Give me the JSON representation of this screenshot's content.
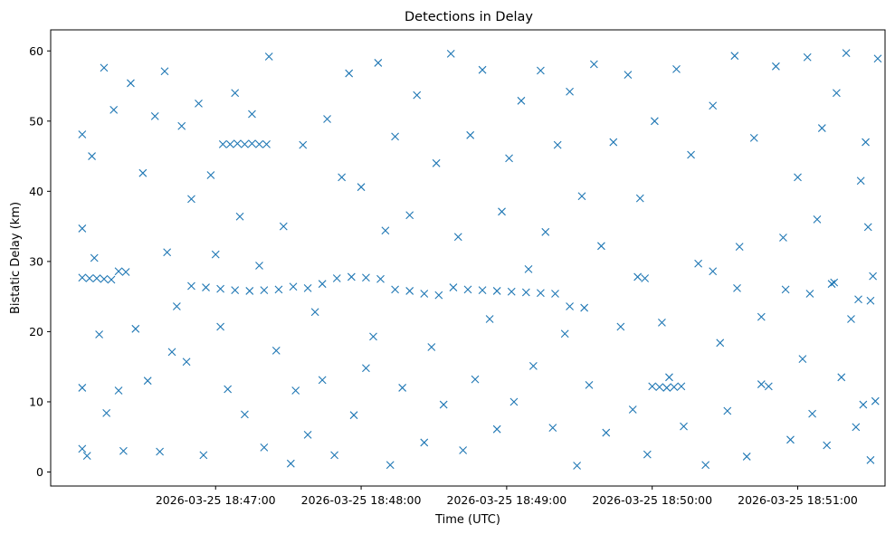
{
  "chart_data": {
    "type": "scatter",
    "title": "Detections in Delay",
    "xlabel": "Time (UTC)",
    "ylabel": "Bistatic Delay (km)",
    "marker": "x",
    "color": "#1f77b4",
    "grid": false,
    "legend": "none",
    "xlim": [
      "2026-03-25 18:45:52",
      "2026-03-25 18:51:36"
    ],
    "ylim": [
      -2,
      63
    ],
    "x_ticks": [
      "2026-03-25 18:47:00",
      "2026-03-25 18:48:00",
      "2026-03-25 18:49:00",
      "2026-03-25 18:50:00",
      "2026-03-25 18:51:00"
    ],
    "y_ticks": [
      0,
      10,
      20,
      30,
      40,
      50,
      60
    ],
    "series": [
      {
        "values": [
          [
            "2026-03-25 18:46:05",
            27.7
          ],
          [
            "2026-03-25 18:46:08",
            27.6
          ],
          [
            "2026-03-25 18:46:11",
            27.6
          ],
          [
            "2026-03-25 18:46:14",
            27.5
          ],
          [
            "2026-03-25 18:46:17",
            27.4
          ],
          [
            "2026-03-25 18:46:20",
            28.6
          ],
          [
            "2026-03-25 18:46:23",
            28.5
          ],
          [
            "2026-03-25 18:46:50",
            26.5
          ],
          [
            "2026-03-25 18:46:56",
            26.3
          ],
          [
            "2026-03-25 18:47:02",
            26.1
          ],
          [
            "2026-03-25 18:47:08",
            25.9
          ],
          [
            "2026-03-25 18:47:14",
            25.8
          ],
          [
            "2026-03-25 18:47:20",
            25.9
          ],
          [
            "2026-03-25 18:47:26",
            26.0
          ],
          [
            "2026-03-25 18:47:32",
            26.4
          ],
          [
            "2026-03-25 18:47:38",
            26.2
          ],
          [
            "2026-03-25 18:47:44",
            26.8
          ],
          [
            "2026-03-25 18:47:50",
            27.6
          ],
          [
            "2026-03-25 18:47:56",
            27.8
          ],
          [
            "2026-03-25 18:48:02",
            27.7
          ],
          [
            "2026-03-25 18:48:08",
            27.5
          ],
          [
            "2026-03-25 18:48:14",
            26.0
          ],
          [
            "2026-03-25 18:48:20",
            25.8
          ],
          [
            "2026-03-25 18:48:26",
            25.4
          ],
          [
            "2026-03-25 18:48:32",
            25.2
          ],
          [
            "2026-03-25 18:48:38",
            26.3
          ],
          [
            "2026-03-25 18:48:44",
            26.0
          ],
          [
            "2026-03-25 18:48:50",
            25.9
          ],
          [
            "2026-03-25 18:48:56",
            25.8
          ],
          [
            "2026-03-25 18:49:02",
            25.7
          ],
          [
            "2026-03-25 18:49:08",
            25.6
          ],
          [
            "2026-03-25 18:49:14",
            25.5
          ],
          [
            "2026-03-25 18:49:20",
            25.4
          ],
          [
            "2026-03-25 18:49:26",
            23.6
          ],
          [
            "2026-03-25 18:49:32",
            23.4
          ],
          [
            "2026-03-25 18:47:03",
            46.7
          ],
          [
            "2026-03-25 18:47:06",
            46.7
          ],
          [
            "2026-03-25 18:47:09",
            46.8
          ],
          [
            "2026-03-25 18:47:12",
            46.7
          ],
          [
            "2026-03-25 18:47:15",
            46.8
          ],
          [
            "2026-03-25 18:47:18",
            46.7
          ],
          [
            "2026-03-25 18:47:21",
            46.7
          ],
          [
            "2026-03-25 18:49:54",
            27.8
          ],
          [
            "2026-03-25 18:49:57",
            27.6
          ],
          [
            "2026-03-25 18:50:00",
            12.2
          ],
          [
            "2026-03-25 18:50:03",
            12.1
          ],
          [
            "2026-03-25 18:50:06",
            12.0
          ],
          [
            "2026-03-25 18:50:09",
            12.1
          ],
          [
            "2026-03-25 18:50:12",
            12.2
          ],
          [
            "2026-03-25 18:50:25",
            28.6
          ],
          [
            "2026-03-25 18:50:35",
            26.2
          ],
          [
            "2026-03-25 18:50:45",
            12.5
          ],
          [
            "2026-03-25 18:50:55",
            26.0
          ],
          [
            "2026-03-25 18:51:05",
            25.4
          ],
          [
            "2026-03-25 18:51:15",
            27.0
          ],
          [
            "2026-03-25 18:51:25",
            24.6
          ],
          [
            "2026-03-25 18:51:30",
            24.4
          ],
          [
            "2026-03-25 18:46:05",
            48.1
          ],
          [
            "2026-03-25 18:46:05",
            34.7
          ],
          [
            "2026-03-25 18:46:05",
            12.0
          ],
          [
            "2026-03-25 18:46:05",
            3.3
          ],
          [
            "2026-03-25 18:46:07",
            2.3
          ],
          [
            "2026-03-25 18:46:09",
            45.0
          ],
          [
            "2026-03-25 18:46:10",
            30.5
          ],
          [
            "2026-03-25 18:46:12",
            19.6
          ],
          [
            "2026-03-25 18:46:14",
            57.6
          ],
          [
            "2026-03-25 18:46:15",
            8.4
          ],
          [
            "2026-03-25 18:46:18",
            51.6
          ],
          [
            "2026-03-25 18:46:20",
            11.6
          ],
          [
            "2026-03-25 18:46:22",
            3.0
          ],
          [
            "2026-03-25 18:46:25",
            55.4
          ],
          [
            "2026-03-25 18:46:27",
            20.4
          ],
          [
            "2026-03-25 18:46:30",
            42.6
          ],
          [
            "2026-03-25 18:46:32",
            13.0
          ],
          [
            "2026-03-25 18:46:35",
            50.7
          ],
          [
            "2026-03-25 18:46:37",
            2.9
          ],
          [
            "2026-03-25 18:46:39",
            57.1
          ],
          [
            "2026-03-25 18:46:40",
            31.3
          ],
          [
            "2026-03-25 18:46:42",
            17.1
          ],
          [
            "2026-03-25 18:46:44",
            23.6
          ],
          [
            "2026-03-25 18:46:46",
            49.3
          ],
          [
            "2026-03-25 18:46:48",
            15.7
          ],
          [
            "2026-03-25 18:46:50",
            38.9
          ],
          [
            "2026-03-25 18:46:53",
            52.5
          ],
          [
            "2026-03-25 18:46:55",
            2.4
          ],
          [
            "2026-03-25 18:46:58",
            42.3
          ],
          [
            "2026-03-25 18:47:00",
            31.0
          ],
          [
            "2026-03-25 18:47:02",
            20.7
          ],
          [
            "2026-03-25 18:47:05",
            11.8
          ],
          [
            "2026-03-25 18:47:08",
            54.0
          ],
          [
            "2026-03-25 18:47:10",
            36.4
          ],
          [
            "2026-03-25 18:47:12",
            8.2
          ],
          [
            "2026-03-25 18:47:15",
            51.0
          ],
          [
            "2026-03-25 18:47:18",
            29.4
          ],
          [
            "2026-03-25 18:47:20",
            3.5
          ],
          [
            "2026-03-25 18:47:22",
            59.2
          ],
          [
            "2026-03-25 18:47:25",
            17.3
          ],
          [
            "2026-03-25 18:47:28",
            35.0
          ],
          [
            "2026-03-25 18:47:31",
            1.2
          ],
          [
            "2026-03-25 18:47:33",
            11.6
          ],
          [
            "2026-03-25 18:47:36",
            46.6
          ],
          [
            "2026-03-25 18:47:38",
            5.3
          ],
          [
            "2026-03-25 18:47:41",
            22.8
          ],
          [
            "2026-03-25 18:47:44",
            13.1
          ],
          [
            "2026-03-25 18:47:46",
            50.3
          ],
          [
            "2026-03-25 18:47:49",
            2.4
          ],
          [
            "2026-03-25 18:47:52",
            42.0
          ],
          [
            "2026-03-25 18:47:55",
            56.8
          ],
          [
            "2026-03-25 18:47:57",
            8.1
          ],
          [
            "2026-03-25 18:48:00",
            40.6
          ],
          [
            "2026-03-25 18:48:02",
            14.8
          ],
          [
            "2026-03-25 18:48:05",
            19.3
          ],
          [
            "2026-03-25 18:48:07",
            58.3
          ],
          [
            "2026-03-25 18:48:10",
            34.4
          ],
          [
            "2026-03-25 18:48:12",
            1.0
          ],
          [
            "2026-03-25 18:48:14",
            47.8
          ],
          [
            "2026-03-25 18:48:17",
            12.0
          ],
          [
            "2026-03-25 18:48:20",
            36.6
          ],
          [
            "2026-03-25 18:48:23",
            53.7
          ],
          [
            "2026-03-25 18:48:26",
            4.2
          ],
          [
            "2026-03-25 18:48:29",
            17.8
          ],
          [
            "2026-03-25 18:48:31",
            44.0
          ],
          [
            "2026-03-25 18:48:34",
            9.6
          ],
          [
            "2026-03-25 18:48:37",
            59.6
          ],
          [
            "2026-03-25 18:48:40",
            33.5
          ],
          [
            "2026-03-25 18:48:42",
            3.1
          ],
          [
            "2026-03-25 18:48:45",
            48.0
          ],
          [
            "2026-03-25 18:48:47",
            13.2
          ],
          [
            "2026-03-25 18:48:50",
            57.3
          ],
          [
            "2026-03-25 18:48:53",
            21.8
          ],
          [
            "2026-03-25 18:48:56",
            6.1
          ],
          [
            "2026-03-25 18:48:58",
            37.1
          ],
          [
            "2026-03-25 18:49:01",
            44.7
          ],
          [
            "2026-03-25 18:49:03",
            10.0
          ],
          [
            "2026-03-25 18:49:06",
            52.9
          ],
          [
            "2026-03-25 18:49:09",
            28.9
          ],
          [
            "2026-03-25 18:49:11",
            15.1
          ],
          [
            "2026-03-25 18:49:14",
            57.2
          ],
          [
            "2026-03-25 18:49:16",
            34.2
          ],
          [
            "2026-03-25 18:49:19",
            6.3
          ],
          [
            "2026-03-25 18:49:21",
            46.6
          ],
          [
            "2026-03-25 18:49:24",
            19.7
          ],
          [
            "2026-03-25 18:49:26",
            54.2
          ],
          [
            "2026-03-25 18:49:29",
            0.9
          ],
          [
            "2026-03-25 18:49:31",
            39.3
          ],
          [
            "2026-03-25 18:49:34",
            12.4
          ],
          [
            "2026-03-25 18:49:36",
            58.1
          ],
          [
            "2026-03-25 18:49:39",
            32.2
          ],
          [
            "2026-03-25 18:49:41",
            5.6
          ],
          [
            "2026-03-25 18:49:44",
            47.0
          ],
          [
            "2026-03-25 18:49:47",
            20.7
          ],
          [
            "2026-03-25 18:49:50",
            56.6
          ],
          [
            "2026-03-25 18:49:52",
            8.9
          ],
          [
            "2026-03-25 18:49:55",
            39.0
          ],
          [
            "2026-03-25 18:49:58",
            2.5
          ],
          [
            "2026-03-25 18:50:01",
            50.0
          ],
          [
            "2026-03-25 18:50:04",
            21.3
          ],
          [
            "2026-03-25 18:50:07",
            13.5
          ],
          [
            "2026-03-25 18:50:10",
            57.4
          ],
          [
            "2026-03-25 18:50:13",
            6.5
          ],
          [
            "2026-03-25 18:50:16",
            45.2
          ],
          [
            "2026-03-25 18:50:19",
            29.7
          ],
          [
            "2026-03-25 18:50:22",
            1.0
          ],
          [
            "2026-03-25 18:50:25",
            52.2
          ],
          [
            "2026-03-25 18:50:28",
            18.4
          ],
          [
            "2026-03-25 18:50:31",
            8.7
          ],
          [
            "2026-03-25 18:50:34",
            59.3
          ],
          [
            "2026-03-25 18:50:36",
            32.1
          ],
          [
            "2026-03-25 18:50:39",
            2.2
          ],
          [
            "2026-03-25 18:50:42",
            47.6
          ],
          [
            "2026-03-25 18:50:45",
            22.1
          ],
          [
            "2026-03-25 18:50:48",
            12.2
          ],
          [
            "2026-03-25 18:50:51",
            57.8
          ],
          [
            "2026-03-25 18:50:54",
            33.4
          ],
          [
            "2026-03-25 18:50:57",
            4.6
          ],
          [
            "2026-03-25 18:51:00",
            42.0
          ],
          [
            "2026-03-25 18:51:02",
            16.1
          ],
          [
            "2026-03-25 18:51:04",
            59.1
          ],
          [
            "2026-03-25 18:51:06",
            8.3
          ],
          [
            "2026-03-25 18:51:08",
            36.0
          ],
          [
            "2026-03-25 18:51:10",
            49.0
          ],
          [
            "2026-03-25 18:51:12",
            3.8
          ],
          [
            "2026-03-25 18:51:14",
            26.8
          ],
          [
            "2026-03-25 18:51:16",
            54.0
          ],
          [
            "2026-03-25 18:51:18",
            13.5
          ],
          [
            "2026-03-25 18:51:20",
            59.7
          ],
          [
            "2026-03-25 18:51:22",
            21.8
          ],
          [
            "2026-03-25 18:51:24",
            6.4
          ],
          [
            "2026-03-25 18:51:26",
            41.5
          ],
          [
            "2026-03-25 18:51:27",
            9.6
          ],
          [
            "2026-03-25 18:51:28",
            47.0
          ],
          [
            "2026-03-25 18:51:29",
            34.9
          ],
          [
            "2026-03-25 18:51:30",
            1.7
          ],
          [
            "2026-03-25 18:51:31",
            27.9
          ],
          [
            "2026-03-25 18:51:32",
            10.1
          ],
          [
            "2026-03-25 18:51:33",
            58.9
          ]
        ]
      }
    ]
  }
}
